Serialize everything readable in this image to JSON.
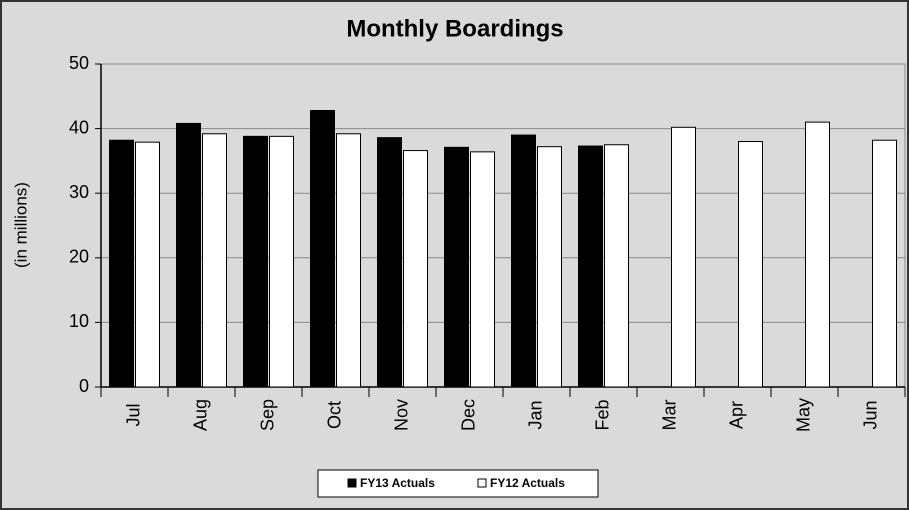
{
  "chart_data": {
    "type": "bar",
    "title": "Monthly Boardings",
    "ylabel": "(in millions)",
    "categories": [
      "Jul",
      "Aug",
      "Sep",
      "Oct",
      "Nov",
      "Dec",
      "Jan",
      "Feb",
      "Mar",
      "Apr",
      "May",
      "Jun"
    ],
    "series": [
      {
        "name": "FY13 Actuals",
        "color": "#000000",
        "values": [
          38.2,
          40.8,
          38.8,
          42.8,
          38.6,
          37.1,
          39.0,
          37.3,
          null,
          null,
          null,
          null
        ]
      },
      {
        "name": "FY12 Actuals",
        "color": "#ffffff",
        "values": [
          37.9,
          39.2,
          38.8,
          39.2,
          36.6,
          36.4,
          37.2,
          37.5,
          40.2,
          38.0,
          41.0,
          38.2
        ]
      }
    ],
    "ylim": [
      0,
      50
    ],
    "yticks": [
      0,
      10,
      20,
      30,
      40,
      50
    ],
    "grid": true,
    "legend": "bottom"
  }
}
